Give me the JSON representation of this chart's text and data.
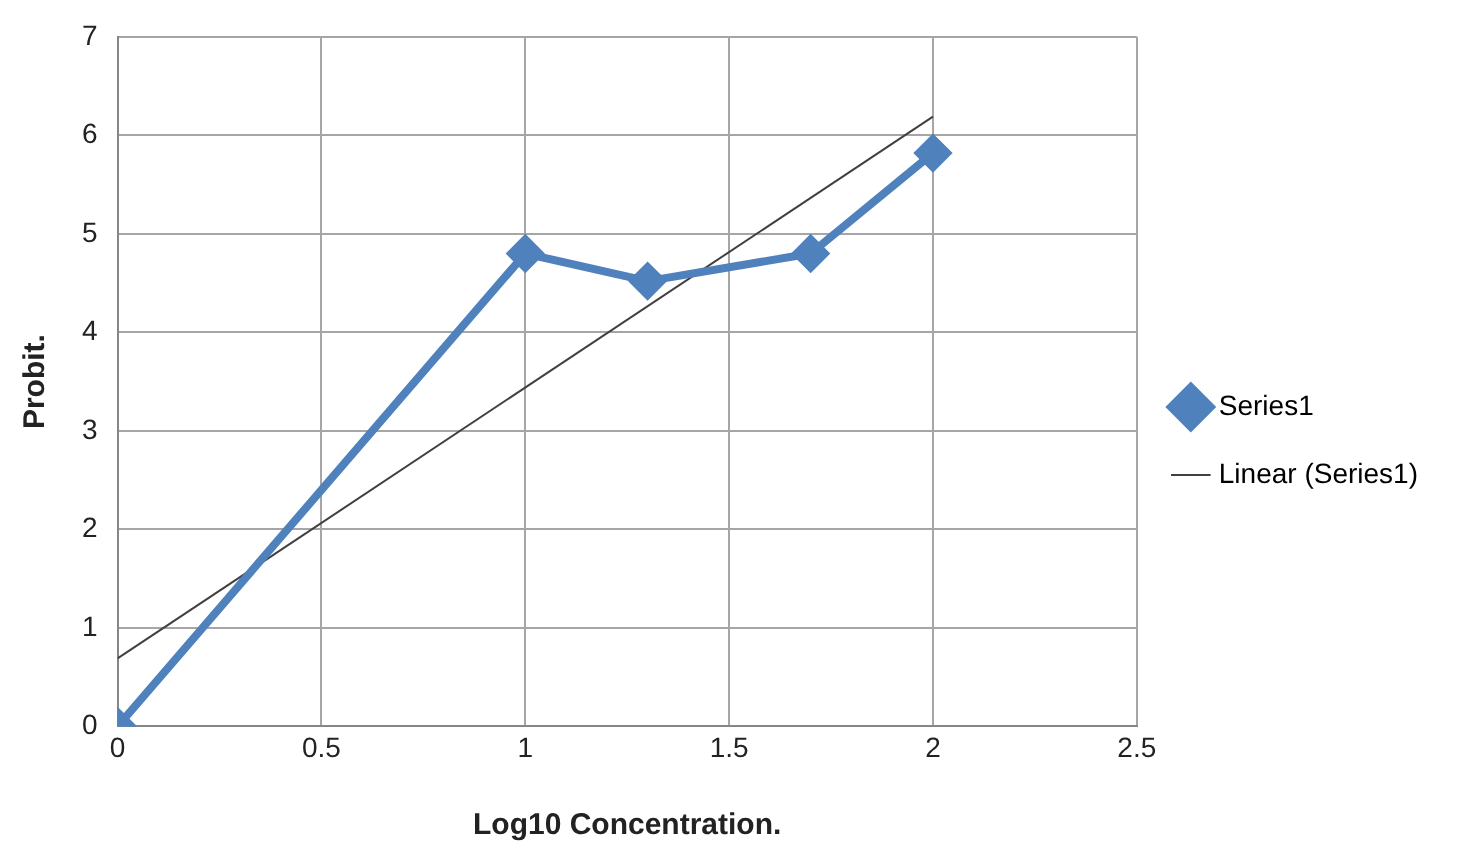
{
  "chart_data": {
    "type": "line",
    "xlabel": "Log10 Concentration.",
    "ylabel": "Probit.",
    "xlim": [
      0,
      2.5
    ],
    "xticks": [
      0,
      0.5,
      1,
      1.5,
      2,
      2.5
    ],
    "ylim": [
      0,
      7
    ],
    "yticks": [
      0,
      1,
      2,
      3,
      4,
      5,
      6,
      7
    ],
    "grid": true,
    "legend": "right",
    "marker": "diamond",
    "series": [
      {
        "name": "Series1",
        "color": "#4f81bd",
        "x": [
          0,
          1,
          1.3,
          1.7,
          2
        ],
        "values": [
          0,
          4.8,
          4.52,
          4.8,
          5.82
        ]
      },
      {
        "name": "Linear (Series1)",
        "color": "#404040",
        "x": [
          0,
          2
        ],
        "values": [
          0.69,
          6.19
        ],
        "marker": "none"
      }
    ]
  }
}
